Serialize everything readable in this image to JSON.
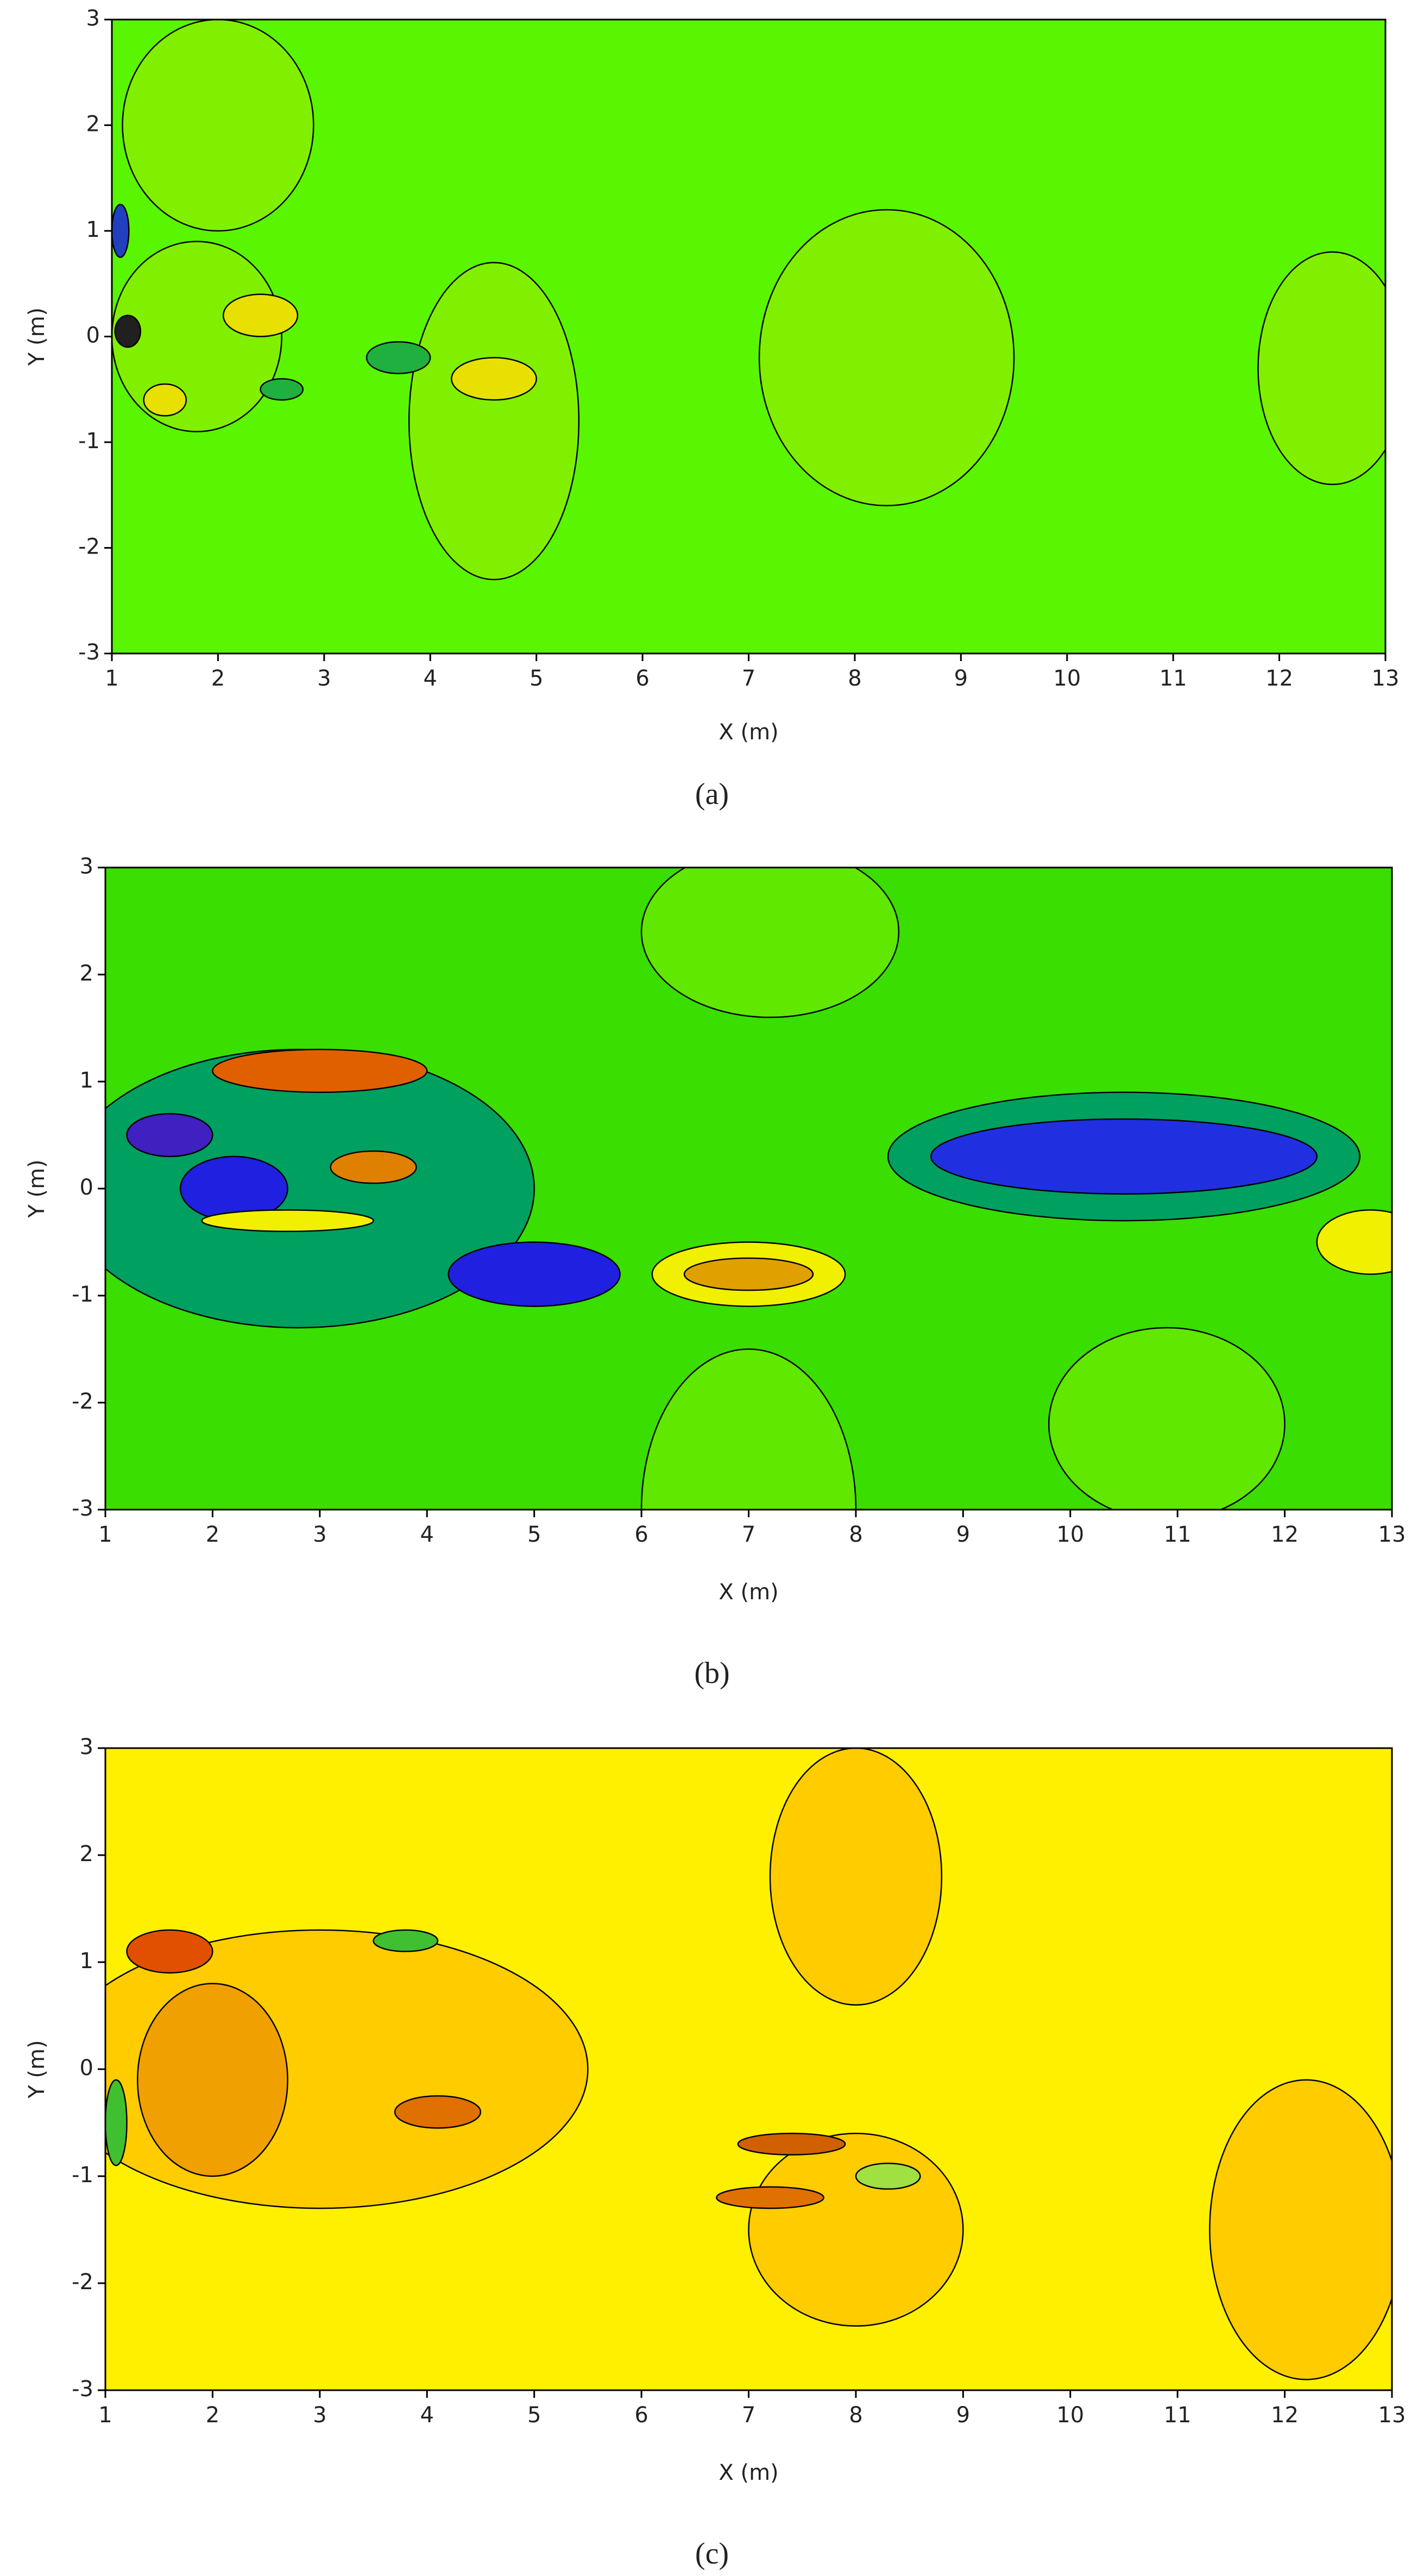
{
  "chart_data": [
    {
      "type": "contour",
      "xlabel": "X (m)",
      "ylabel": "Y (m)",
      "caption": "(a)",
      "xlim": [
        1,
        13
      ],
      "ylim": [
        -3,
        3
      ],
      "xticks": [
        1,
        2,
        3,
        4,
        5,
        6,
        7,
        8,
        9,
        10,
        11,
        12,
        13
      ],
      "yticks": [
        -3,
        -2,
        -1,
        0,
        1,
        2,
        3
      ],
      "background": "#5af500"
    },
    {
      "type": "contour",
      "xlabel": "X (m)",
      "ylabel": "Y (m)",
      "caption": "(b)",
      "xlim": [
        1,
        13
      ],
      "ylim": [
        -3,
        3
      ],
      "xticks": [
        1,
        2,
        3,
        4,
        5,
        6,
        7,
        8,
        9,
        10,
        11,
        12,
        13
      ],
      "yticks": [
        -3,
        -2,
        -1,
        0,
        1,
        2,
        3
      ],
      "background": "#3ade00"
    },
    {
      "type": "contour",
      "xlabel": "X (m)",
      "ylabel": "Y (m)",
      "caption": "(c)",
      "xlim": [
        1,
        13
      ],
      "ylim": [
        -3,
        3
      ],
      "xticks": [
        1,
        2,
        3,
        4,
        5,
        6,
        7,
        8,
        9,
        10,
        11,
        12,
        13
      ],
      "yticks": [
        -3,
        -2,
        -1,
        0,
        1,
        2,
        3
      ],
      "background": "#fff000"
    }
  ]
}
